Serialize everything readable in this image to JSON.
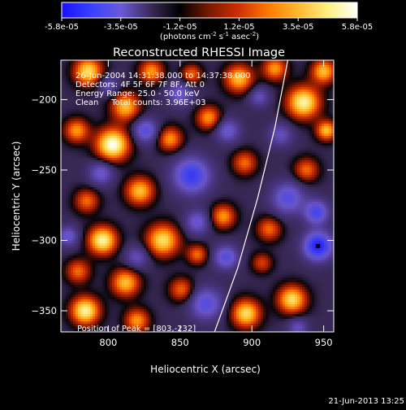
{
  "colorbar": {
    "ticks": [
      "-5.8e-05",
      "-3.5e-05",
      "-1.2e-05",
      "1.2e-05",
      "3.5e-05",
      "5.8e-05"
    ],
    "unit_main": "(photons cm",
    "unit_sup1": "-2",
    "unit_mid1": " s",
    "unit_sup2": "-1",
    "unit_mid2": " asec",
    "unit_sup3": "-2",
    "unit_end": ")",
    "colors": [
      "#1a10ff",
      "#3a40ff",
      "#6a5ad8",
      "#3c2a5a",
      "#000000",
      "#7a1a00",
      "#d03000",
      "#ff7a00",
      "#ffb830",
      "#fff080",
      "#ffffff"
    ]
  },
  "chart_data": {
    "type": "heatmap",
    "title": "Reconstructed RHESSI Image",
    "xlabel": "Heliocentric X (arcsec)",
    "ylabel": "Heliocentric Y (arcsec)",
    "xlim": [
      767,
      957
    ],
    "ylim": [
      -365,
      -172
    ],
    "xticks": [
      800,
      850,
      900,
      950
    ],
    "yticks": [
      -200,
      -250,
      -300,
      -350
    ],
    "info_lines": [
      "26-Jun-2004 14:31:38.000 to 14:37:38.000",
      "Detectors: 4F 5F 6F 7F 8F, Att 0",
      "Energy Range: 25.0 - 50.0 keV",
      "Clean     Total counts: 3.96E+03"
    ],
    "peak_label": "Position of Peak = [803,-232]",
    "limb_points": [
      [
        874,
        -365
      ],
      [
        890,
        -320
      ],
      [
        904,
        -270
      ],
      [
        916,
        -220
      ],
      [
        925,
        -172
      ]
    ],
    "marker": [
      946,
      -304
    ],
    "blobs": [
      [
        803,
        -232,
        8,
        1.0
      ],
      [
        786,
        -180,
        7,
        0.8
      ],
      [
        830,
        -180,
        6,
        0.6
      ],
      [
        812,
        -205,
        7,
        0.7
      ],
      [
        778,
        -222,
        6,
        0.6
      ],
      [
        822,
        -265,
        7,
        0.7
      ],
      [
        785,
        -272,
        6,
        0.5
      ],
      [
        843,
        -228,
        6,
        0.6
      ],
      [
        796,
        -300,
        7,
        0.9
      ],
      [
        838,
        -300,
        8,
        0.8
      ],
      [
        779,
        -322,
        6,
        0.5
      ],
      [
        812,
        -330,
        7,
        0.7
      ],
      [
        784,
        -350,
        7,
        0.9
      ],
      [
        820,
        -357,
        6,
        0.6
      ],
      [
        851,
        -335,
        6,
        0.5
      ],
      [
        862,
        -310,
        5,
        0.5
      ],
      [
        880,
        -283,
        6,
        0.6
      ],
      [
        870,
        -213,
        6,
        0.6
      ],
      [
        891,
        -185,
        7,
        0.7
      ],
      [
        895,
        -245,
        6,
        0.5
      ],
      [
        912,
        -292,
        6,
        0.5
      ],
      [
        896,
        -352,
        7,
        0.8
      ],
      [
        928,
        -342,
        7,
        0.8
      ],
      [
        936,
        -202,
        8,
        0.9
      ],
      [
        950,
        -180,
        6,
        0.7
      ],
      [
        938,
        -250,
        6,
        0.5
      ],
      [
        952,
        -222,
        5,
        0.7
      ],
      [
        916,
        -178,
        6,
        0.6
      ],
      [
        858,
        -182,
        5,
        0.5
      ],
      [
        907,
        -316,
        5,
        0.4
      ],
      [
        826,
        -222,
        6,
        -0.6
      ],
      [
        858,
        -254,
        9,
        -0.8
      ],
      [
        850,
        -196,
        6,
        -0.5
      ],
      [
        800,
        -190,
        5,
        -0.4
      ],
      [
        795,
        -252,
        6,
        -0.5
      ],
      [
        868,
        -345,
        8,
        -0.6
      ],
      [
        925,
        -270,
        8,
        -0.6
      ],
      [
        946,
        -304,
        7,
        -1.0
      ],
      [
        945,
        -280,
        6,
        -0.7
      ],
      [
        920,
        -225,
        6,
        -0.4
      ],
      [
        883,
        -222,
        6,
        -0.5
      ],
      [
        772,
        -297,
        5,
        -0.5
      ],
      [
        820,
        -312,
        6,
        -0.4
      ],
      [
        882,
        -312,
        6,
        -0.6
      ],
      [
        932,
        -362,
        5,
        -0.4
      ],
      [
        905,
        -198,
        5,
        -0.4
      ],
      [
        862,
        -287,
        6,
        -0.5
      ]
    ]
  },
  "footer": {
    "timestamp": "21-Jun-2013 13:25"
  }
}
